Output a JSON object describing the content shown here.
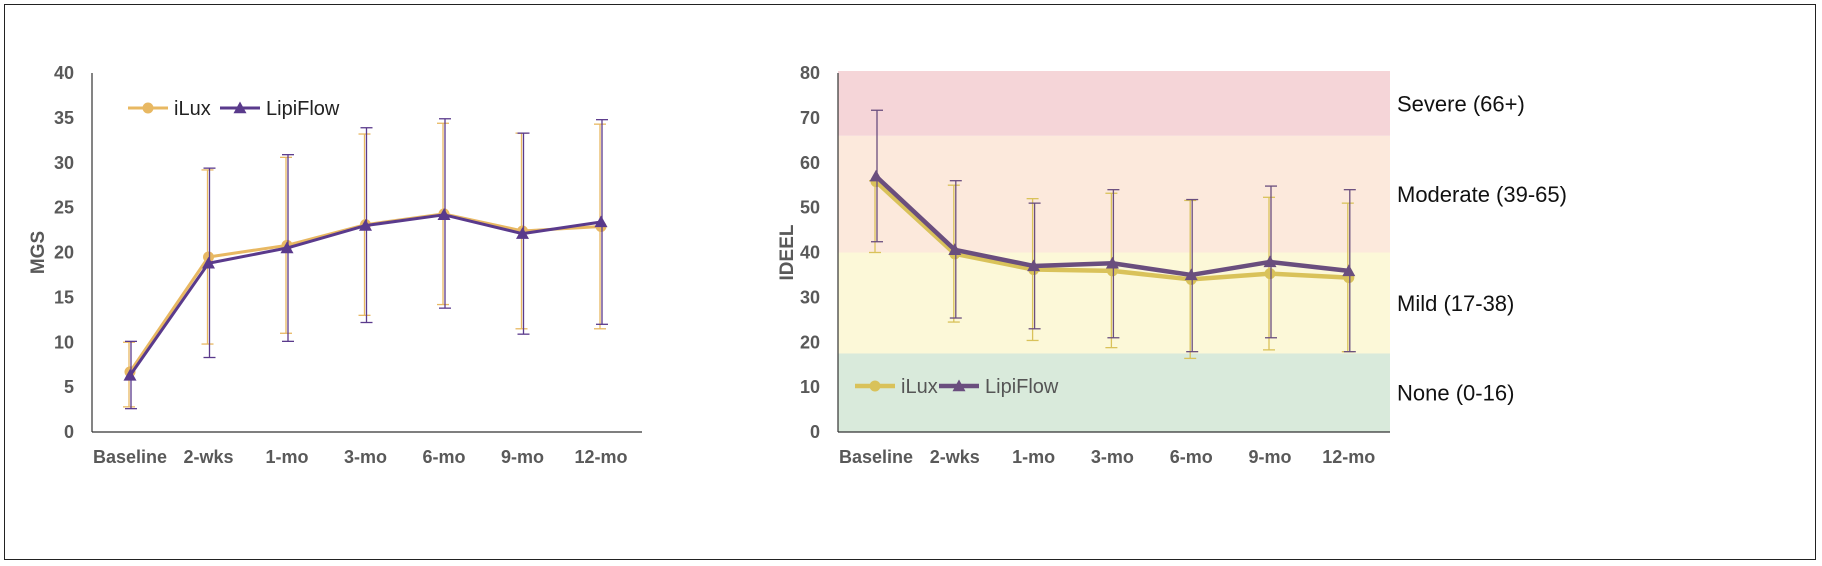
{
  "colors": {
    "ilux": "#e8b862",
    "lipiflow": "#5a3a8c",
    "ilux_right": "#d9c25a",
    "lipiflow_right": "#6a4e7e",
    "severe": "#f5d5d8",
    "moderate": "#fce9dc",
    "mild": "#fcf8d8",
    "none": "#d9eadb",
    "axis": "#595959"
  },
  "chart_data": [
    {
      "type": "line",
      "title": "",
      "xlabel": "",
      "ylabel": "MGS",
      "ylim": [
        0,
        40
      ],
      "yticks": [
        0,
        5,
        10,
        15,
        20,
        25,
        30,
        35,
        40
      ],
      "categories": [
        "Baseline",
        "2-wks",
        "1-mo",
        "3-mo",
        "6-mo",
        "9-mo",
        "12-mo"
      ],
      "legend_position": "top-left",
      "grid": false,
      "series": [
        {
          "name": "iLux",
          "values": [
            6.7,
            19.5,
            20.8,
            23.1,
            24.3,
            22.4,
            22.9
          ],
          "err_low": [
            2.8,
            9.8,
            11.0,
            13.0,
            14.2,
            11.5,
            11.5
          ],
          "err_high": [
            10.0,
            29.2,
            30.6,
            33.2,
            34.4,
            33.3,
            34.3
          ]
        },
        {
          "name": "LipiFlow",
          "values": [
            6.3,
            18.8,
            20.5,
            23.0,
            24.2,
            22.1,
            23.4
          ],
          "err_low": [
            2.6,
            8.3,
            10.1,
            12.2,
            13.8,
            10.9,
            12.0
          ],
          "err_high": [
            10.1,
            29.4,
            30.9,
            33.9,
            34.9,
            33.3,
            34.8
          ]
        }
      ]
    },
    {
      "type": "line",
      "title": "",
      "xlabel": "",
      "ylabel": "IDEEL",
      "ylim": [
        0,
        80
      ],
      "yticks": [
        0,
        10,
        20,
        30,
        40,
        50,
        60,
        70,
        80
      ],
      "categories": [
        "Baseline",
        "2-wks",
        "1-mo",
        "3-mo",
        "6-mo",
        "9-mo",
        "12-mo"
      ],
      "legend_position": "bottom-left",
      "grid": false,
      "bands": [
        {
          "label": "Severe (66+)",
          "from": 66,
          "to": 80,
          "color": "#f5d5d8"
        },
        {
          "label": "Moderate (39-65)",
          "from": 40,
          "to": 66,
          "color": "#fce9dc"
        },
        {
          "label": "Mild (17-38)",
          "from": 17.5,
          "to": 40,
          "color": "#fcf8d8"
        },
        {
          "label": "None (0-16)",
          "from": 0,
          "to": 17.5,
          "color": "#d9eadb"
        }
      ],
      "series": [
        {
          "name": "iLux",
          "values": [
            55.8,
            39.7,
            36.2,
            35.9,
            34.0,
            35.3,
            34.4
          ],
          "err_low": [
            40.0,
            24.5,
            20.4,
            18.8,
            16.4,
            18.3,
            17.9
          ],
          "err_high": [
            56.0,
            55.0,
            52.0,
            53.2,
            51.6,
            52.3,
            51.0
          ]
        },
        {
          "name": "LipiFlow",
          "values": [
            57.0,
            40.6,
            37.0,
            37.6,
            35.0,
            37.9,
            35.9
          ],
          "err_low": [
            42.4,
            25.4,
            23.0,
            21.0,
            17.9,
            21.0,
            17.9
          ],
          "err_high": [
            71.7,
            56.0,
            51.0,
            54.0,
            51.8,
            54.8,
            54.0
          ]
        }
      ]
    }
  ]
}
